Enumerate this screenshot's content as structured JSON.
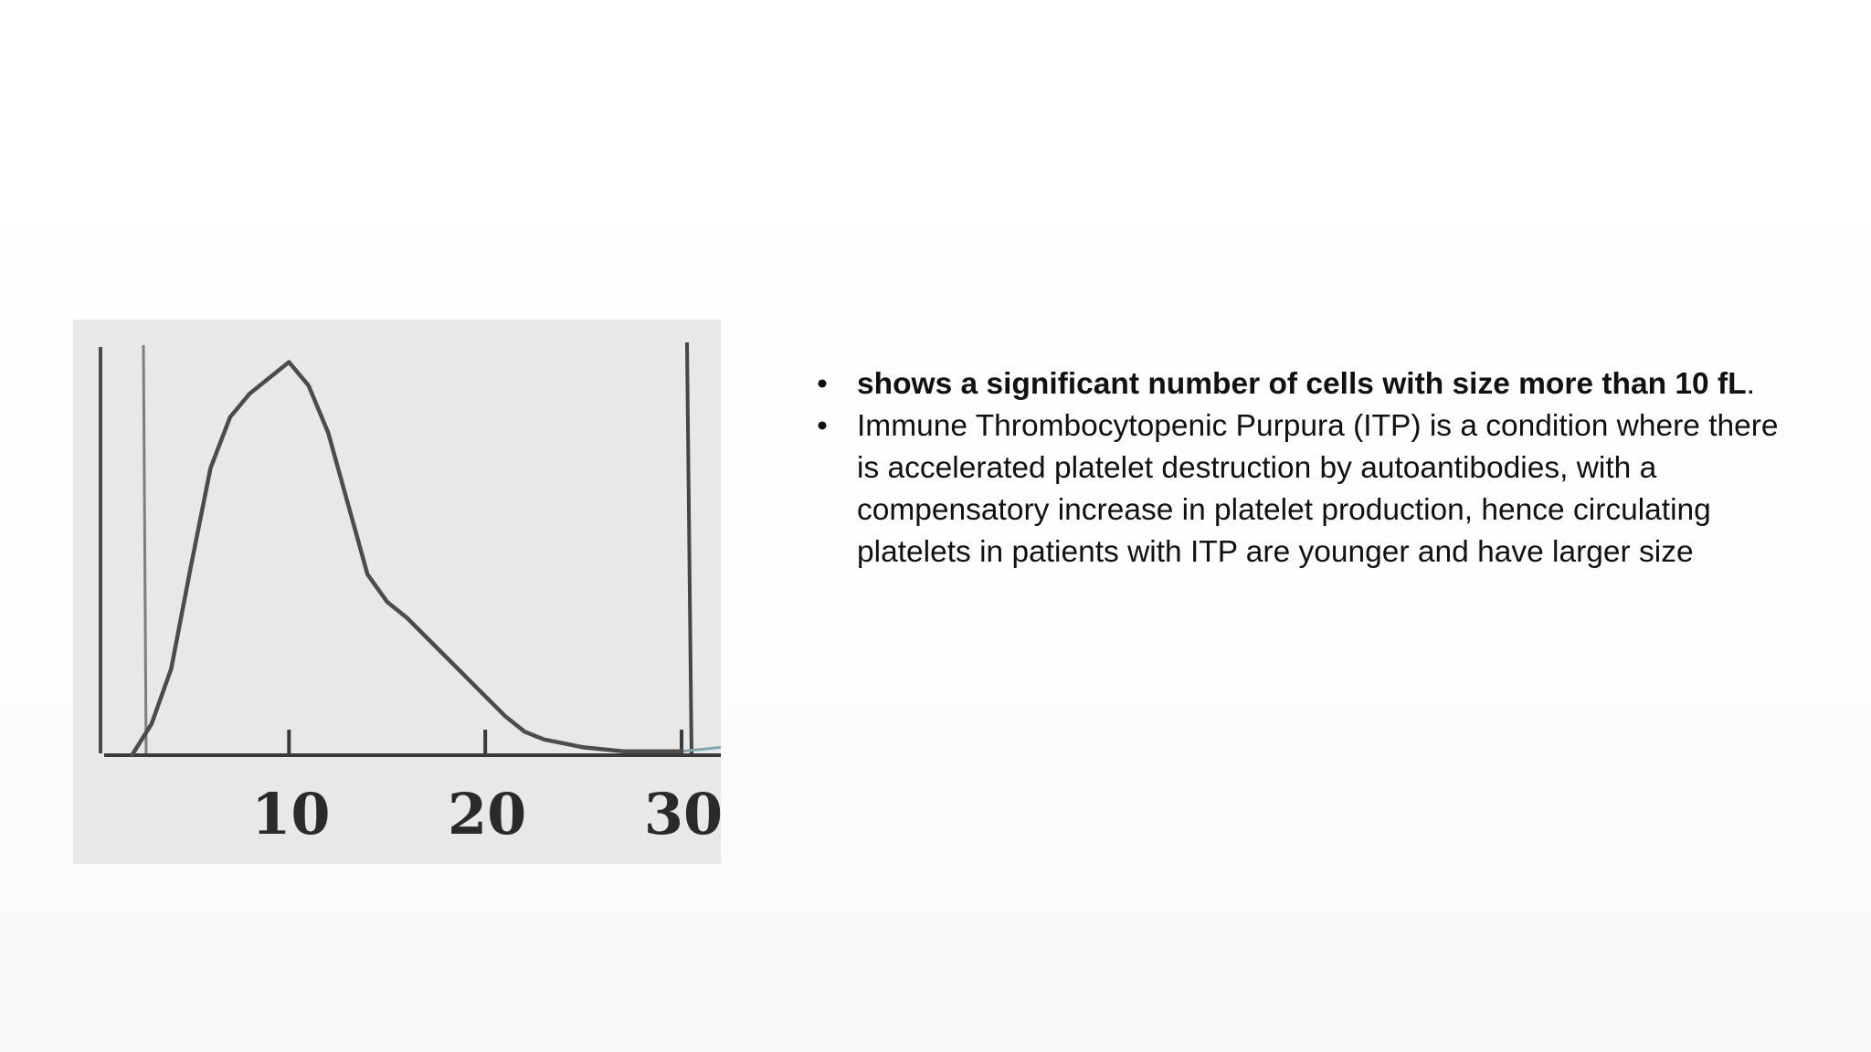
{
  "figure": {
    "description_role": "platelet size distribution histogram",
    "chart_data": {
      "type": "line",
      "x_tick_labels": [
        "10",
        "20",
        "30"
      ],
      "x_ticks": [
        10,
        20,
        30
      ],
      "x": [
        2,
        3,
        4,
        5,
        6,
        7,
        8,
        9,
        10,
        11,
        12,
        13,
        14,
        15,
        16,
        17,
        18,
        19,
        20,
        21,
        22,
        23,
        24,
        25,
        26,
        27,
        28,
        29,
        30
      ],
      "y": [
        0.0,
        0.08,
        0.22,
        0.48,
        0.73,
        0.86,
        0.92,
        0.96,
        1.0,
        0.94,
        0.82,
        0.64,
        0.46,
        0.39,
        0.35,
        0.3,
        0.25,
        0.2,
        0.15,
        0.1,
        0.06,
        0.04,
        0.03,
        0.02,
        0.015,
        0.01,
        0.01,
        0.01,
        0.01
      ],
      "xlim": [
        -1,
        32
      ],
      "ylim": [
        0,
        1.05
      ],
      "grid": false,
      "colors": {
        "curve": "#4c4c4c",
        "axis": "#3a3a3a",
        "tail": "#7aa7b4",
        "background": "#e8e8e8"
      }
    }
  },
  "bullets": [
    {
      "marker": "•",
      "bold_text": "shows a significant number of cells with size more than 10 fL",
      "text": "."
    },
    {
      "marker": "•",
      "bold_text": "",
      "text": "Immune Thrombocytopenic Purpura (ITP) is a condition where there is accelerated platelet destruction by autoantibodies, with a compensatory increase in platelet production, hence circulating platelets in patients with ITP are younger and have larger size"
    }
  ]
}
